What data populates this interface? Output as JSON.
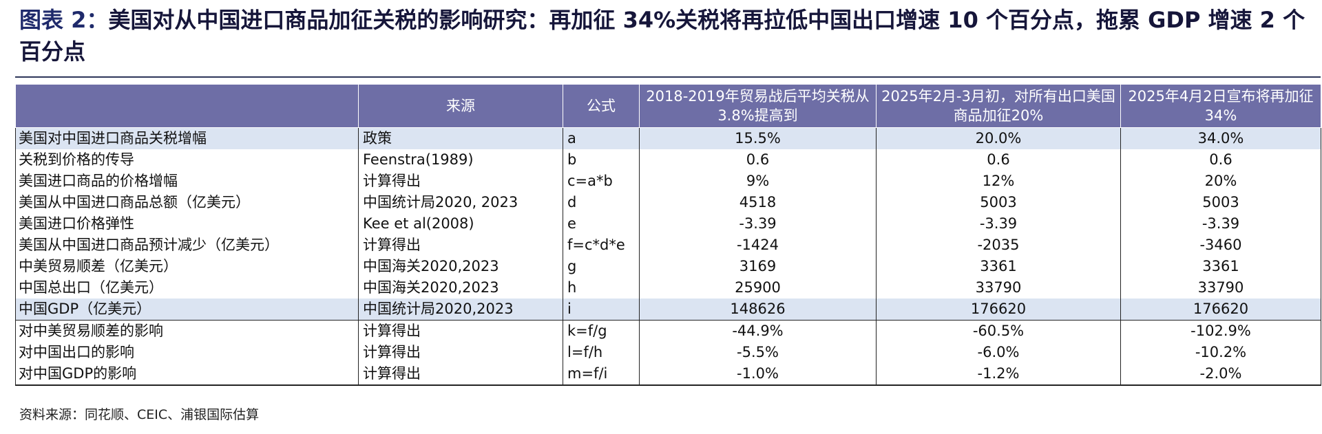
{
  "title": {
    "lead": "图表 2：",
    "text": "美国对从中国进口商品加征关税的影响研究：再加征 34%关税将再拉低中国出口增速 10 个百分点，拖累 GDP 增速 2 个百分点"
  },
  "table": {
    "headers": [
      "",
      "来源",
      "公式",
      "2018-2019年贸易战后平均关税从3.8%提高到",
      "2025年2月-3月初，对所有出口美国商品加征20%",
      "2025年4月2日宣布将再加征34%"
    ],
    "rows": [
      {
        "item": "美国对中国进口商品关税增幅",
        "source": "政策",
        "formula": "a",
        "v1": "15.5%",
        "v2": "20.0%",
        "v3": "34.0%"
      },
      {
        "item": "关税到价格的传导",
        "source": "Feenstra(1989)",
        "formula": "b",
        "v1": "0.6",
        "v2": "0.6",
        "v3": "0.6"
      },
      {
        "item": "美国进口商品的价格增幅",
        "source": "计算得出",
        "formula": "c=a*b",
        "v1": "9%",
        "v2": "12%",
        "v3": "20%"
      },
      {
        "item": "美国从中国进口商品总额（亿美元）",
        "source": "中国统计局2020, 2023",
        "formula": "d",
        "v1": "4518",
        "v2": "5003",
        "v3": "5003"
      },
      {
        "item": "美国进口价格弹性",
        "source": "Kee et al(2008)",
        "formula": "e",
        "v1": "-3.39",
        "v2": "-3.39",
        "v3": "-3.39"
      },
      {
        "item": "美国从中国进口商品预计减少（亿美元）",
        "source": "计算得出",
        "formula": "f=c*d*e",
        "v1": "-1424",
        "v2": "-2035",
        "v3": "-3460"
      },
      {
        "item": "中美贸易顺差（亿美元）",
        "source": "中国海关2020,2023",
        "formula": "g",
        "v1": "3169",
        "v2": "3361",
        "v3": "3361"
      },
      {
        "item": "中国总出口（亿美元）",
        "source": "中国海关2020,2023",
        "formula": "h",
        "v1": "25900",
        "v2": "33790",
        "v3": "33790"
      },
      {
        "item": "中国GDP（亿美元）",
        "source": "中国统计局2020,2023",
        "formula": "i",
        "v1": "148626",
        "v2": "176620",
        "v3": "176620"
      },
      {
        "item": "对中美贸易顺差的影响",
        "source": "计算得出",
        "formula": "k=f/g",
        "v1": "-44.9%",
        "v2": "-60.5%",
        "v3": "-102.9%"
      },
      {
        "item": "对中国出口的影响",
        "source": "计算得出",
        "formula": "l=f/h",
        "v1": "-5.5%",
        "v2": "-6.0%",
        "v3": "-10.2%"
      },
      {
        "item": "对中国GDP的影响",
        "source": "计算得出",
        "formula": "m=f/i",
        "v1": "-1.0%",
        "v2": "-1.2%",
        "v3": "-2.0%"
      }
    ]
  },
  "footer": {
    "source": "资料来源：同花顺、CEIC、浦银国际估算"
  },
  "colors": {
    "header_bg": "#6e6ea6",
    "row_shade": "#dbe4f2",
    "title": "#1f2a6b"
  }
}
